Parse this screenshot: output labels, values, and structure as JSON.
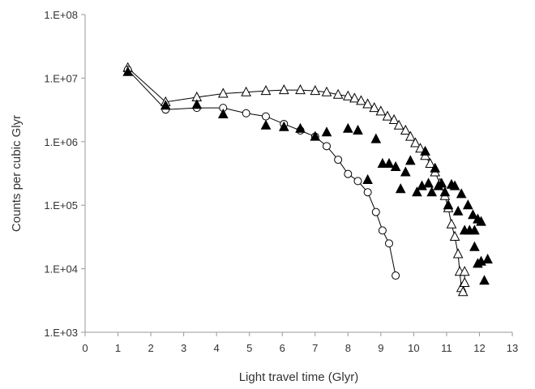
{
  "chart_data": {
    "type": "scatter",
    "title": "",
    "xlabel": "Light travel time (Glyr)",
    "ylabel": "Counts per cubic Glyr",
    "xlim": [
      0,
      13
    ],
    "ylim": [
      1000,
      100000000
    ],
    "yscale": "log",
    "grid": false,
    "legend": "none",
    "x_ticks": [
      0,
      1,
      2,
      3,
      4,
      5,
      6,
      7,
      8,
      9,
      10,
      11,
      12,
      13
    ],
    "x_tick_labels": [
      "0",
      "1",
      "2",
      "3",
      "4",
      "5",
      "6",
      "7",
      "8",
      "9",
      "10",
      "11",
      "12",
      "13"
    ],
    "y_ticks": [
      1000,
      10000,
      100000,
      1000000,
      10000000,
      100000000
    ],
    "y_tick_labels": [
      "1.E+03",
      "1.E+04",
      "1.E+05",
      "1.E+06",
      "1.E+07",
      "1.E+08"
    ],
    "series": [
      {
        "marker": "open-triangle",
        "line": true,
        "color": "#000000",
        "points": [
          [
            1.3,
            14500000
          ],
          [
            2.45,
            4200000
          ],
          [
            3.4,
            5000000
          ],
          [
            4.2,
            5700000
          ],
          [
            4.9,
            6000000
          ],
          [
            5.5,
            6300000
          ],
          [
            6.05,
            6500000
          ],
          [
            6.55,
            6500000
          ],
          [
            7.0,
            6300000
          ],
          [
            7.35,
            6000000
          ],
          [
            7.7,
            5500000
          ],
          [
            8.0,
            5200000
          ],
          [
            8.2,
            4800000
          ],
          [
            8.4,
            4400000
          ],
          [
            8.6,
            3900000
          ],
          [
            8.8,
            3400000
          ],
          [
            9.0,
            3000000
          ],
          [
            9.2,
            2500000
          ],
          [
            9.4,
            2200000
          ],
          [
            9.55,
            1800000
          ],
          [
            9.75,
            1500000
          ],
          [
            9.9,
            1200000
          ],
          [
            10.05,
            950000
          ],
          [
            10.2,
            780000
          ],
          [
            10.35,
            600000
          ],
          [
            10.5,
            450000
          ],
          [
            10.65,
            330000
          ],
          [
            10.8,
            220000
          ],
          [
            10.95,
            140000
          ],
          [
            11.05,
            90000
          ],
          [
            11.15,
            50000
          ],
          [
            11.25,
            32000
          ],
          [
            11.35,
            17000
          ],
          [
            11.4,
            9000
          ],
          [
            11.45,
            5000
          ],
          [
            11.5,
            4300
          ],
          [
            11.55,
            6000
          ],
          [
            11.55,
            9000
          ]
        ]
      },
      {
        "marker": "open-circle",
        "line": true,
        "color": "#000000",
        "points": [
          [
            1.3,
            13500000
          ],
          [
            2.45,
            3200000
          ],
          [
            3.4,
            3400000
          ],
          [
            4.2,
            3400000
          ],
          [
            4.9,
            2800000
          ],
          [
            5.5,
            2500000
          ],
          [
            6.05,
            1900000
          ],
          [
            6.55,
            1500000
          ],
          [
            7.0,
            1200000
          ],
          [
            7.35,
            850000
          ],
          [
            7.7,
            520000
          ],
          [
            8.0,
            310000
          ],
          [
            8.3,
            240000
          ],
          [
            8.6,
            160000
          ],
          [
            8.85,
            78000
          ],
          [
            9.05,
            40000
          ],
          [
            9.25,
            25000
          ],
          [
            9.45,
            7800
          ]
        ]
      },
      {
        "marker": "filled-triangle",
        "line": false,
        "color": "#000000",
        "points": [
          [
            1.3,
            12500000
          ],
          [
            2.45,
            3700000
          ],
          [
            3.4,
            3800000
          ],
          [
            4.2,
            2700000
          ],
          [
            5.5,
            1800000
          ],
          [
            6.05,
            1700000
          ],
          [
            6.55,
            1600000
          ],
          [
            7.0,
            1200000
          ],
          [
            7.35,
            1400000
          ],
          [
            8.0,
            1600000
          ],
          [
            8.3,
            1500000
          ],
          [
            8.6,
            250000
          ],
          [
            8.85,
            1100000
          ],
          [
            9.05,
            450000
          ],
          [
            9.25,
            450000
          ],
          [
            9.45,
            400000
          ],
          [
            9.6,
            180000
          ],
          [
            9.75,
            330000
          ],
          [
            9.9,
            500000
          ],
          [
            10.1,
            160000
          ],
          [
            10.25,
            200000
          ],
          [
            10.35,
            700000
          ],
          [
            10.45,
            220000
          ],
          [
            10.55,
            160000
          ],
          [
            10.65,
            380000
          ],
          [
            10.75,
            200000
          ],
          [
            10.85,
            220000
          ],
          [
            10.95,
            160000
          ],
          [
            11.05,
            100000
          ],
          [
            11.15,
            210000
          ],
          [
            11.25,
            200000
          ],
          [
            11.35,
            80000
          ],
          [
            11.45,
            150000
          ],
          [
            11.55,
            40000
          ],
          [
            11.65,
            100000
          ],
          [
            11.7,
            40000
          ],
          [
            11.8,
            70000
          ],
          [
            11.85,
            40000
          ],
          [
            11.95,
            60000
          ],
          [
            12.05,
            55000
          ],
          [
            11.85,
            22000
          ],
          [
            11.95,
            12000
          ],
          [
            12.05,
            13000
          ],
          [
            12.15,
            6500
          ],
          [
            12.25,
            14000
          ]
        ]
      }
    ]
  }
}
